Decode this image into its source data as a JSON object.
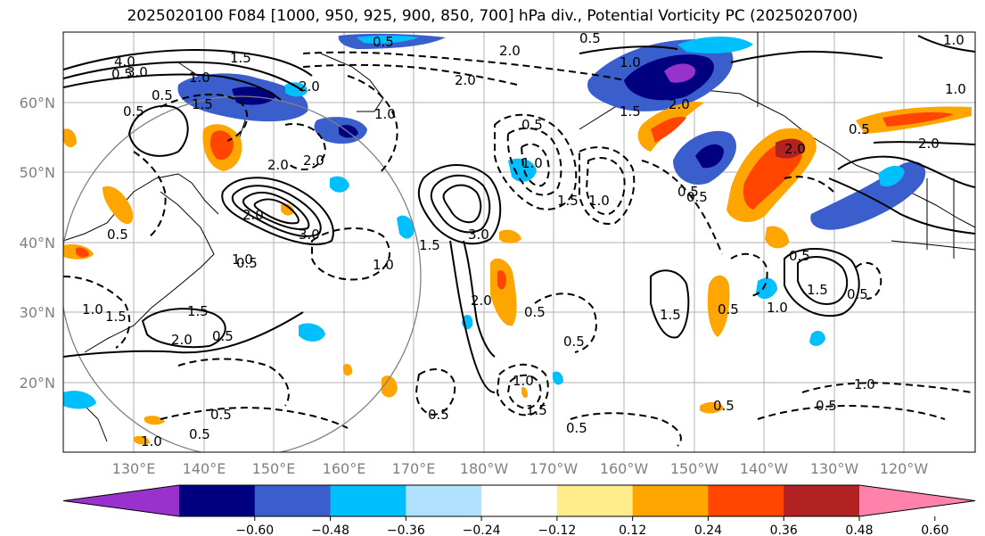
{
  "title": "2025020100 F084 [1000, 950, 925, 900, 850, 700] hPa div., Potential Vorticity PC (2025020700)",
  "lat_labels": [
    "60°N",
    "50°N",
    "40°N",
    "30°N",
    "20°N"
  ],
  "lon_labels": [
    "130°E",
    "140°E",
    "150°E",
    "160°E",
    "170°E",
    "180°W",
    "170°W",
    "160°W",
    "150°W",
    "140°W",
    "130°W",
    "120°W"
  ],
  "colorbar": {
    "colors": [
      "#9932cc",
      "#000080",
      "#3a5fcd",
      "#00bfff",
      "#b0e2ff",
      "#ffffff",
      "#ffec8b",
      "#ffa500",
      "#ff4500",
      "#b22222",
      "#ff82ab"
    ],
    "ticks": [
      "−0.60",
      "−0.48",
      "−0.36",
      "−0.24",
      "−0.12",
      "0.12",
      "0.24",
      "0.36",
      "0.48",
      "0.60"
    ]
  },
  "contour_labels": [
    "4.0",
    "3.0",
    "1.5",
    "1.0",
    "0.5",
    "3.0",
    "2.0",
    "1.0",
    "0.5",
    "2.0",
    "3.0",
    "2.0",
    "1.5",
    "1.5",
    "2.0",
    "1.0",
    "0.5",
    "0.5",
    "1.5",
    "1.5",
    "2.0",
    "0.5",
    "1.0",
    "1.0",
    "0.5",
    "1.5",
    "2.0",
    "0.5",
    "0.5",
    "0.5",
    "1.5",
    "1.0",
    "2.0",
    "0.5",
    "1.5",
    "1.0",
    "1.5",
    "0.5",
    "2.0",
    "1.0",
    "2.0",
    "2.0",
    "0.5",
    "0.5",
    "0.5",
    "0.5",
    "1.5",
    "0.5",
    "1.0",
    "0.5",
    "1.0",
    "0.5",
    "1.0",
    "1.0",
    "0.5",
    "1.0",
    "2.0",
    "0.5",
    "0.5",
    "1.0",
    "0.5",
    "0.5"
  ]
}
